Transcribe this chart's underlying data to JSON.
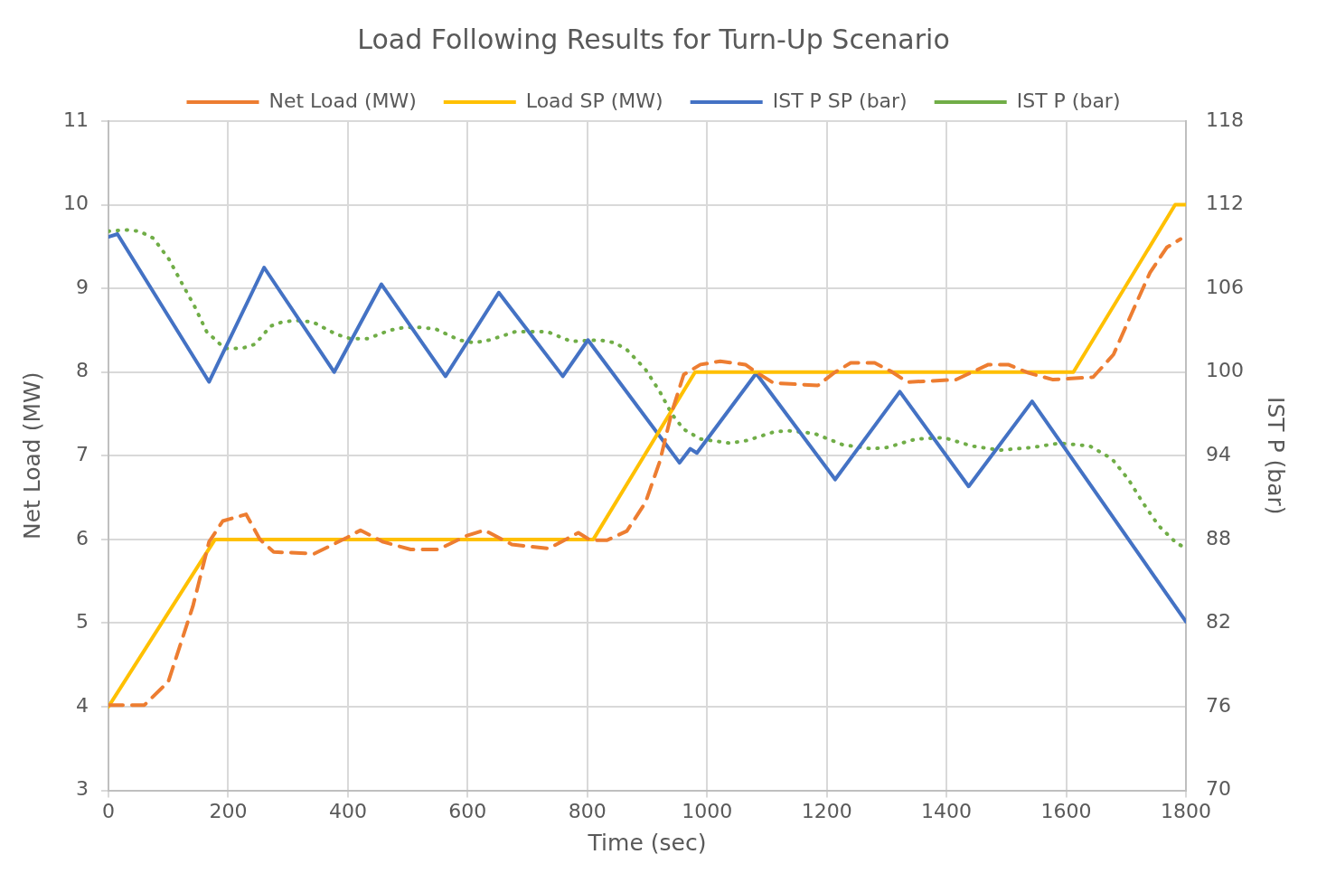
{
  "chart_data": {
    "type": "line",
    "title": "Load Following Results for Turn-Up Scenario",
    "xlabel": "Time (sec)",
    "ylabel": "Net Load (MW)",
    "y2label": "IST P (bar)",
    "xlim": [
      0,
      1800
    ],
    "xticks": [
      0,
      200,
      400,
      600,
      800,
      1000,
      1200,
      1400,
      1600,
      1800
    ],
    "ylim": [
      3,
      11
    ],
    "yticks": [
      3,
      4,
      5,
      6,
      7,
      8,
      9,
      10,
      11
    ],
    "y2lim": [
      70,
      118
    ],
    "y2ticks": [
      70,
      76,
      82,
      88,
      94,
      100,
      106,
      112,
      118
    ],
    "grid": true,
    "legend": "top",
    "marker": "none",
    "series": [
      {
        "name": "Net Load (MW)",
        "color": "#ed7d31",
        "line_style": "dashed",
        "x": [
          0,
          60,
          100,
          141,
          168,
          191,
          230,
          253,
          276,
          344,
          398,
          421,
          459,
          505,
          551,
          597,
          628,
          674,
          735,
          785,
          805,
          833,
          866,
          897,
          921,
          941,
          961,
          989,
          1022,
          1064,
          1084,
          1111,
          1185,
          1212,
          1240,
          1280,
          1307,
          1335,
          1416,
          1470,
          1503,
          1537,
          1578,
          1645,
          1679,
          1713,
          1740,
          1768,
          1791
        ],
        "values": [
          4.02,
          4.02,
          4.3,
          5.2,
          5.97,
          6.22,
          6.3,
          6.0,
          5.85,
          5.83,
          6.02,
          6.11,
          5.97,
          5.88,
          5.88,
          6.04,
          6.11,
          5.94,
          5.89,
          6.08,
          5.99,
          5.99,
          6.1,
          6.44,
          6.93,
          7.52,
          7.97,
          8.09,
          8.13,
          8.09,
          7.99,
          7.87,
          7.84,
          7.99,
          8.11,
          8.11,
          8.01,
          7.88,
          7.91,
          8.09,
          8.09,
          7.99,
          7.91,
          7.94,
          8.21,
          8.76,
          9.19,
          9.49,
          9.59
        ]
      },
      {
        "name": "Load SP (MW)",
        "color": "#ffc000",
        "line_style": "solid",
        "x": [
          0,
          178,
          810,
          980,
          1612,
          1782,
          1800
        ],
        "values": [
          4,
          6,
          6,
          8,
          8,
          10,
          10
        ]
      },
      {
        "name": "IST P SP (bar)",
        "color": "#4472c4",
        "line_style": "solid",
        "axis": "y2",
        "x": [
          0,
          15,
          168,
          260,
          377,
          456,
          563,
          652,
          759,
          801,
          954,
          972,
          983,
          1082,
          1214,
          1322,
          1437,
          1543,
          1800
        ],
        "values": [
          109.7,
          109.9,
          99.3,
          107.5,
          100.0,
          106.3,
          99.7,
          105.7,
          99.7,
          102.3,
          93.5,
          94.5,
          94.2,
          99.9,
          92.3,
          98.6,
          91.8,
          97.9,
          82.1
        ]
      },
      {
        "name": "IST P (bar)",
        "color": "#70ad47",
        "line_style": "dotted",
        "axis": "y2",
        "x": [
          0,
          28,
          52,
          75,
          101,
          121,
          144,
          164,
          194,
          223,
          245,
          271,
          291,
          314,
          341,
          381,
          404,
          433,
          470,
          494,
          520,
          546,
          586,
          611,
          637,
          680,
          704,
          733,
          773,
          820,
          846,
          866,
          897,
          921,
          941,
          961,
          989,
          1039,
          1067,
          1111,
          1134,
          1179,
          1226,
          1274,
          1301,
          1349,
          1396,
          1442,
          1489,
          1544,
          1589,
          1639,
          1676,
          1704,
          1727,
          1754,
          1785,
          1800
        ],
        "values": [
          110.1,
          110.2,
          110.1,
          109.6,
          108.1,
          106.5,
          104.7,
          102.9,
          101.7,
          101.7,
          102.0,
          103.3,
          103.6,
          103.7,
          103.6,
          102.7,
          102.4,
          102.4,
          103.0,
          103.2,
          103.2,
          103.1,
          102.3,
          102.1,
          102.3,
          102.9,
          102.9,
          102.9,
          102.2,
          102.3,
          102.1,
          101.6,
          100.2,
          98.6,
          97.0,
          95.9,
          95.2,
          94.9,
          95.1,
          95.7,
          95.8,
          95.6,
          94.8,
          94.5,
          94.6,
          95.2,
          95.3,
          94.7,
          94.4,
          94.6,
          94.9,
          94.7,
          93.8,
          92.3,
          90.7,
          89.0,
          87.7,
          87.4
        ]
      }
    ]
  }
}
